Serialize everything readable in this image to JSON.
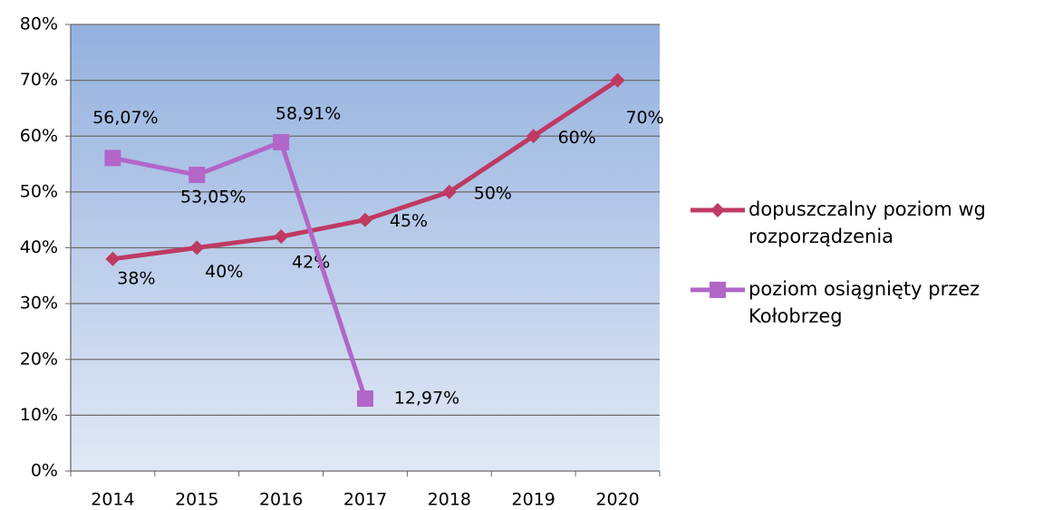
{
  "chart_data": {
    "type": "line",
    "categories": [
      "2014",
      "2015",
      "2016",
      "2017",
      "2018",
      "2019",
      "2020"
    ],
    "series": [
      {
        "name": "dopuszczalny poziom wg rozporządzenia",
        "color": "#bf3a62",
        "marker": "diamond",
        "values": [
          38,
          40,
          42,
          45,
          50,
          60,
          70
        ],
        "value_labels": [
          "38%",
          "40%",
          "42%",
          "45%",
          "50%",
          "60%",
          "70%"
        ]
      },
      {
        "name": "poziom osiągnięty przez Kołobrzeg",
        "color": "#b266c8",
        "marker": "square",
        "values": [
          56.07,
          53.05,
          58.91,
          12.97,
          null,
          null,
          null
        ],
        "value_labels": [
          "56,07%",
          "53,05%",
          "58,91%",
          "12,97%",
          null,
          null,
          null
        ]
      }
    ],
    "ylim": [
      0,
      80
    ],
    "yticks": [
      {
        "value": 0,
        "label": "0%"
      },
      {
        "value": 10,
        "label": "10%"
      },
      {
        "value": 20,
        "label": "20%"
      },
      {
        "value": 30,
        "label": "30%"
      },
      {
        "value": 40,
        "label": "40%"
      },
      {
        "value": 50,
        "label": "50%"
      },
      {
        "value": 60,
        "label": "60%"
      },
      {
        "value": 70,
        "label": "70%"
      },
      {
        "value": 80,
        "label": "80%"
      }
    ],
    "grid": true,
    "legend": "right"
  }
}
